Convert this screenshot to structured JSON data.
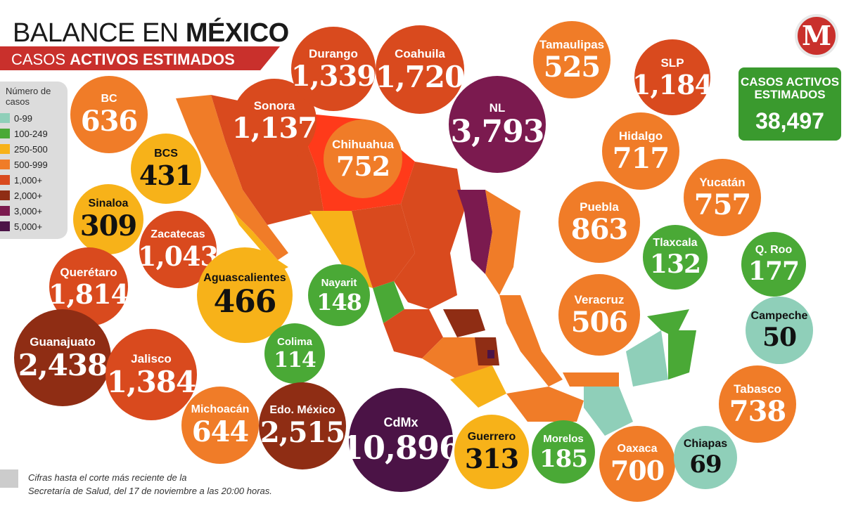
{
  "header": {
    "title_light": "BALANCE EN ",
    "title_bold": "MÉXICO",
    "subtitle_light": "CASOS ",
    "subtitle_bold": "ACTIVOS ESTIMADOS"
  },
  "legend": {
    "title": "Número de casos",
    "items": [
      {
        "label": "0-99",
        "color": "#8fcfb9"
      },
      {
        "label": "100-249",
        "color": "#4aa936"
      },
      {
        "label": "250-500",
        "color": "#f7b219"
      },
      {
        "label": "500-999",
        "color": "#f07c28"
      },
      {
        "label": "1,000+",
        "color": "#d94a1e"
      },
      {
        "label": "2,000+",
        "color": "#8f2d14"
      },
      {
        "label": "3,000+",
        "color": "#7b1a4f"
      },
      {
        "label": "5,000+",
        "color": "#4b1346"
      }
    ]
  },
  "brand": {
    "logo_letter": "M",
    "accent": "#c9302c"
  },
  "total": {
    "label": "CASOS ACTIVOS ESTIMADOS",
    "value": "38,497"
  },
  "states": [
    {
      "name": "BC",
      "value": "636",
      "color": "#f07c28"
    },
    {
      "name": "BCS",
      "value": "431",
      "color": "#f7b219"
    },
    {
      "name": "Sinaloa",
      "value": "309",
      "color": "#f7b219"
    },
    {
      "name": "Sonora",
      "value": "1,137",
      "color": "#d94a1e"
    },
    {
      "name": "Durango",
      "value": "1,339",
      "color": "#d94a1e"
    },
    {
      "name": "Coahuila",
      "value": "1,720",
      "color": "#d94a1e"
    },
    {
      "name": "Chihuahua",
      "value": "752",
      "color": "#f07c28"
    },
    {
      "name": "NL",
      "value": "3,793",
      "color": "#7b1a4f"
    },
    {
      "name": "Tamaulipas",
      "value": "525",
      "color": "#f07c28"
    },
    {
      "name": "SLP",
      "value": "1,184",
      "color": "#d94a1e"
    },
    {
      "name": "Hidalgo",
      "value": "717",
      "color": "#f07c28"
    },
    {
      "name": "Yucatán",
      "value": "757",
      "color": "#f07c28"
    },
    {
      "name": "Puebla",
      "value": "863",
      "color": "#f07c28"
    },
    {
      "name": "Tlaxcala",
      "value": "132",
      "color": "#4aa936"
    },
    {
      "name": "Q. Roo",
      "value": "177",
      "color": "#4aa936"
    },
    {
      "name": "Zacatecas",
      "value": "1,043",
      "color": "#d94a1e"
    },
    {
      "name": "Querétaro",
      "value": "1,814",
      "color": "#d94a1e"
    },
    {
      "name": "Aguascalientes",
      "value": "466",
      "color": "#f7b219"
    },
    {
      "name": "Nayarit",
      "value": "148",
      "color": "#4aa936"
    },
    {
      "name": "Veracruz",
      "value": "506",
      "color": "#f07c28"
    },
    {
      "name": "Campeche",
      "value": "50",
      "color": "#8fcfb9"
    },
    {
      "name": "Guanajuato",
      "value": "2,438",
      "color": "#8f2d14"
    },
    {
      "name": "Jalisco",
      "value": "1,384",
      "color": "#d94a1e"
    },
    {
      "name": "Colima",
      "value": "114",
      "color": "#4aa936"
    },
    {
      "name": "Tabasco",
      "value": "738",
      "color": "#f07c28"
    },
    {
      "name": "Michoacán",
      "value": "644",
      "color": "#f07c28"
    },
    {
      "name": "Edo. México",
      "value": "2,515",
      "color": "#8f2d14"
    },
    {
      "name": "CdMx",
      "value": "10,896",
      "color": "#4b1346"
    },
    {
      "name": "Guerrero",
      "value": "313",
      "color": "#f7b219"
    },
    {
      "name": "Morelos",
      "value": "185",
      "color": "#4aa936"
    },
    {
      "name": "Oaxaca",
      "value": "700",
      "color": "#f07c28"
    },
    {
      "name": "Chiapas",
      "value": "69",
      "color": "#8fcfb9"
    }
  ],
  "footnote": {
    "line1": "Cifras hasta el corte más reciente de la",
    "line2": "Secretaría de Salud, del 17 de noviembre a las 20:00 horas."
  }
}
